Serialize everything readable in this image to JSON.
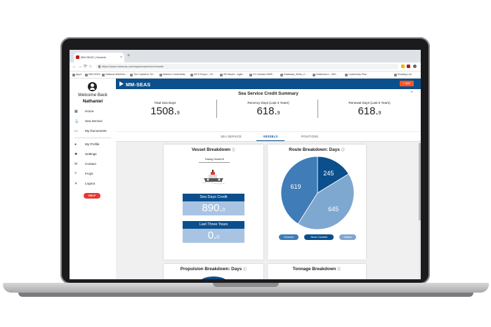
{
  "browser": {
    "tab_title": "MM-SEAS | Vessels",
    "tab_close": "×",
    "new_tab": "+",
    "nav_back": "←",
    "nav_forward": "→",
    "nav_reload": "⟳",
    "nav_home": "⌂",
    "url": "https://www.mmseas.com/app/seaservice/vessels",
    "bookmarks": [
      {
        "label": "Apps",
        "color": "#5f6368"
      },
      {
        "label": "MM-SEAS",
        "color": "#b71c1c"
      },
      {
        "label": "National Maritime...",
        "color": "#444444"
      },
      {
        "label": "The Captain's Tol...",
        "color": "#e65100"
      },
      {
        "label": "Mariner Credentials...",
        "color": "#1565c0"
      },
      {
        "label": "MCS Ropco – Bl...",
        "color": "#9e9e9e"
      },
      {
        "label": "WS Board - Agile...",
        "color": "#1976d2"
      },
      {
        "label": "V1 Unleash MMF...",
        "color": "#8e24aa"
      },
      {
        "label": "Database_fields_C...",
        "color": "#2e7d32"
      },
      {
        "label": "Dashboard – MM...",
        "color": "#0277bd"
      },
      {
        "label": "Leadership Plan",
        "color": "#1e88e5"
      },
      {
        "label": "Reading List",
        "color": "#5f6368"
      }
    ]
  },
  "sidebar": {
    "welcome": "Welcome Back",
    "user_name": "Nathaniel",
    "items": [
      {
        "label": "Home",
        "icon": "▦"
      },
      {
        "label": "Sea Service",
        "icon": "⚓"
      },
      {
        "label": "My Documents",
        "icon": "▭"
      },
      {
        "label": "My Profile",
        "icon": "●"
      },
      {
        "label": "Settings",
        "icon": "✹"
      },
      {
        "label": "Contact",
        "icon": "✉"
      },
      {
        "label": "FAQs",
        "icon": "?"
      },
      {
        "label": "Logout",
        "icon": "✕"
      }
    ],
    "help": "HELP"
  },
  "header": {
    "logo": "MM-SEAS",
    "add_button": "+ ADD"
  },
  "summary": {
    "title": "Sea Service Credit Summary",
    "collapse": "⌃",
    "stats": [
      {
        "label": "Total Sea Days",
        "whole": "1508.",
        "decimal": "9"
      },
      {
        "label": "Recency Days (Last 3 Years)",
        "whole": "618.",
        "decimal": "9"
      },
      {
        "label": "Renewal Days (Last 5 Years)",
        "whole": "618.",
        "decimal": "9"
      }
    ]
  },
  "tabs": [
    {
      "label": "SEA SERVICE",
      "active": false
    },
    {
      "label": "VESSELS",
      "active": true
    },
    {
      "label": "POSITIONS",
      "active": false
    }
  ],
  "vessel_card": {
    "title": "Vessel Breakdown",
    "info": "ⓘ",
    "vessel_select": "Towing Vessel",
    "select_caret": "▾",
    "sea_days_label": "Sea Days Credit",
    "sea_days_whole": "890.",
    "sea_days_decimal": "0",
    "three_years_label": "Last Three Years",
    "three_years_whole": "0.",
    "three_years_decimal": "0"
  },
  "route_card": {
    "title": "Route Breakdown: Days",
    "info": "ⓘ"
  },
  "propulsion_card": {
    "title": "Propulsion Breakdown: Days",
    "info": "ⓘ"
  },
  "tonnage_card": {
    "title": "Tonnage Breakdown",
    "info": "ⓘ"
  },
  "chart_data": {
    "type": "pie",
    "title": "Route Breakdown: Days",
    "categories": [
      "Oceans",
      "Near Coastal",
      "Inland"
    ],
    "values": [
      619,
      245,
      645
    ],
    "colors": [
      "#3f7cb8",
      "#0b4f8c",
      "#7fa8d0"
    ],
    "legend": "bottom"
  }
}
